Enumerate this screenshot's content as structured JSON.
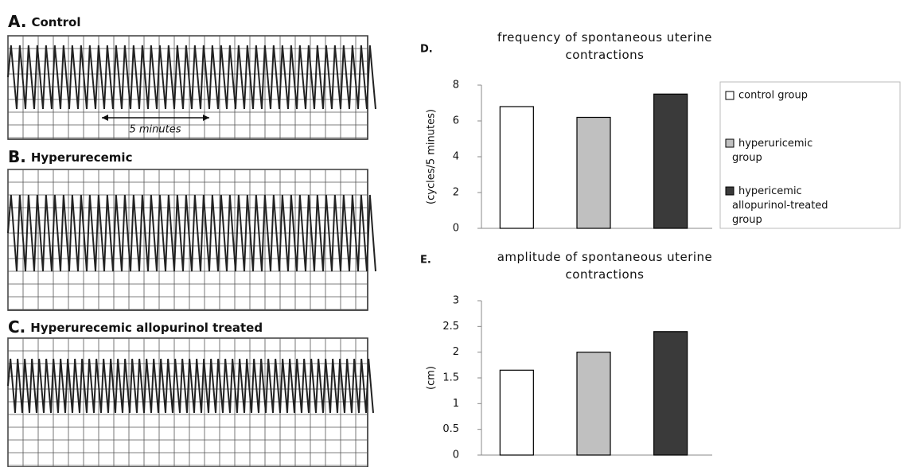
{
  "panels": [
    {
      "letter": "A.",
      "title": "Control",
      "note": "5 minutes"
    },
    {
      "letter": "B.",
      "title": "Hyperurecemic"
    },
    {
      "letter": "C.",
      "title": "Hyperurecemic allopurinol  treated"
    }
  ],
  "chart_data": [
    {
      "type": "bar",
      "panel": "D.",
      "title": "frequency of spontaneous  uterine contractions",
      "y_label": "(cycles/5 minutes)",
      "categories": [
        null,
        null,
        null
      ],
      "values": [
        6.8,
        6.2,
        7.5
      ],
      "colors": [
        "#ffffff",
        "#c0c0c0",
        "#3a3a3a"
      ],
      "legend": [
        "control group",
        "hyperuricemic group",
        "hypericemic allopurinol-treated group"
      ],
      "ylim": [
        0,
        8
      ],
      "yticks": [
        0,
        2,
        4,
        6,
        8
      ]
    },
    {
      "type": "bar",
      "panel": "E.",
      "title": "amplitude of spontaneous  uterine contractions",
      "y_label": "(cm)",
      "categories": [
        null,
        null,
        null
      ],
      "values": [
        1.65,
        2.0,
        2.4
      ],
      "colors": [
        "#ffffff",
        "#c0c0c0",
        "#3a3a3a"
      ],
      "ylim": [
        0,
        3
      ],
      "yticks": [
        0,
        0.5,
        1,
        1.5,
        2,
        2.5,
        3
      ]
    }
  ]
}
